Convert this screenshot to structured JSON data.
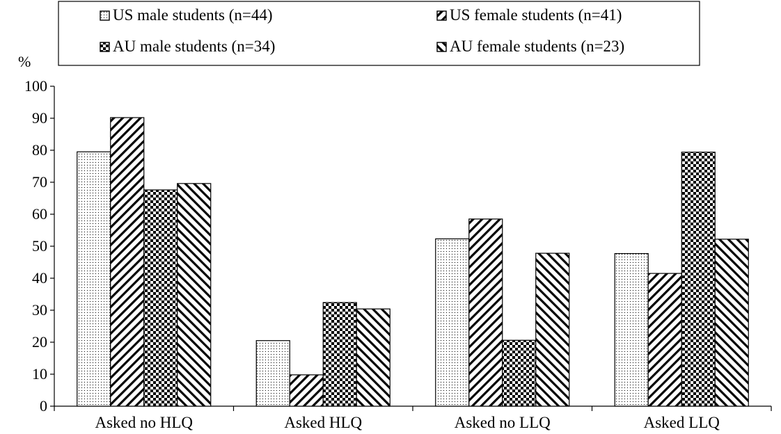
{
  "chart_data": {
    "type": "bar",
    "title": "",
    "xlabel": "",
    "ylabel": "%",
    "ylim": [
      0,
      100
    ],
    "yticks": [
      0,
      10,
      20,
      30,
      40,
      50,
      60,
      70,
      80,
      90,
      100
    ],
    "grid": false,
    "legend_position": "top",
    "categories": [
      "Asked no HLQ",
      "Asked HLQ",
      "Asked no LLQ",
      "Asked LLQ"
    ],
    "series": [
      {
        "name": "US male students (n=44)",
        "pattern": "dots",
        "values": [
          79.5,
          20.5,
          52.3,
          47.7
        ]
      },
      {
        "name": "US female students (n=41)",
        "pattern": "diagonal-up",
        "values": [
          90.2,
          9.8,
          58.5,
          41.5
        ]
      },
      {
        "name": "AU male students (n=34)",
        "pattern": "checker",
        "values": [
          67.6,
          32.4,
          20.6,
          79.4
        ]
      },
      {
        "name": "AU female students (n=23)",
        "pattern": "diagonal-down",
        "values": [
          69.6,
          30.4,
          47.8,
          52.2
        ]
      }
    ]
  }
}
